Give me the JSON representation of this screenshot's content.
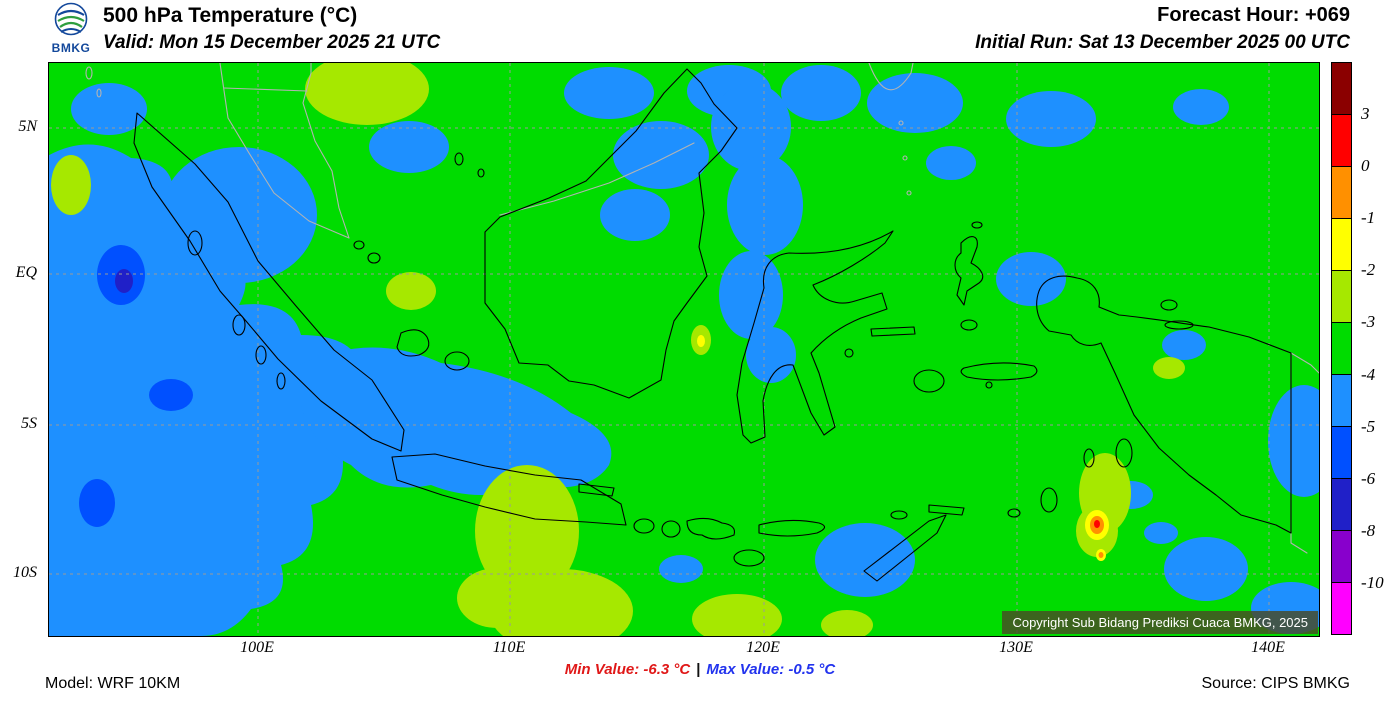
{
  "palette": {
    "blue": "#1e90ff",
    "blue2": "#0050ff",
    "blue3": "#2020c8",
    "yg": "#a6e800",
    "yellow": "#ffff00",
    "orange": "#ff9000",
    "red": "#ff0000",
    "green": "#00dc00",
    "minred": "#e01818",
    "maxblue": "#2233ee"
  },
  "header": {
    "logo_text": "BMKG",
    "title": "500 hPa Temperature (°C)",
    "valid": "Valid: Mon 15 December 2025 21 UTC",
    "forecast_hour": "Forecast Hour: +069",
    "initial_run": "Initial Run: Sat 13 December 2025 00 UTC"
  },
  "map": {
    "lat_labels": [
      "5N",
      "EQ",
      "5S",
      "10S"
    ],
    "lon_labels": [
      "100E",
      "110E",
      "120E",
      "130E",
      "140E"
    ],
    "copyright": "Copyright Sub Bidang Prediksi Cuaca BMKG, 2025"
  },
  "colorbar": {
    "tick_labels": [
      "3",
      "0",
      "-1",
      "-2",
      "-3",
      "-4",
      "-5",
      "-6",
      "-8",
      "-10"
    ],
    "colors": [
      "#8b0000",
      "#ff0000",
      "#ff9000",
      "#ffff00",
      "#a6e800",
      "#00dc00",
      "#1e90ff",
      "#0050ff",
      "#2020c8",
      "#8800cc",
      "#ff00ff"
    ]
  },
  "footer": {
    "model": "Model: WRF 10KM",
    "min_value": "Min Value: -6.3 °C",
    "separator": "|",
    "max_value": "Max Value: -0.5 °C",
    "source": "Source: CIPS BMKG"
  }
}
